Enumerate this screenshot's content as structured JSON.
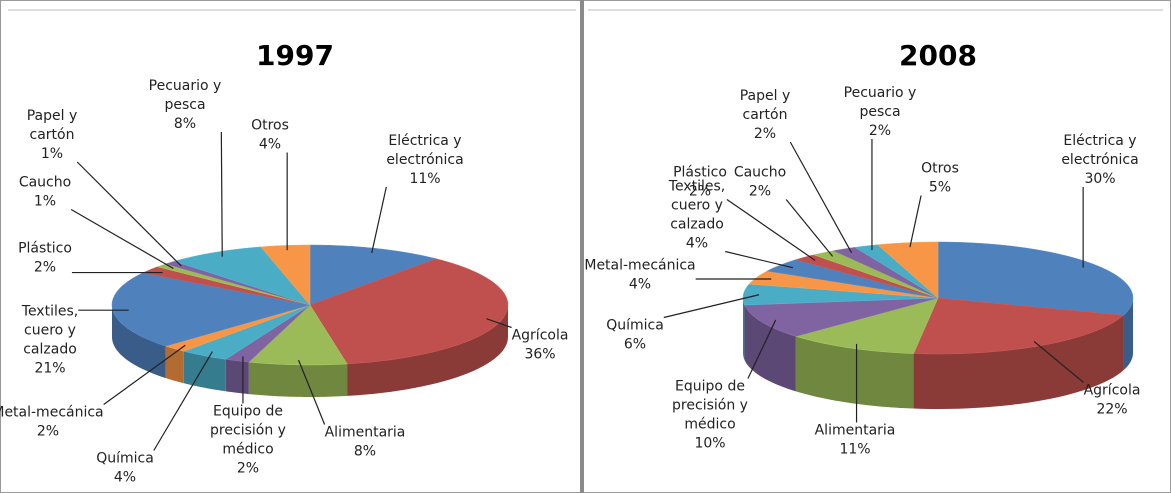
{
  "chart_data": [
    {
      "type": "pie",
      "title": "1997",
      "categories": [
        "Eléctrica y electrónica",
        "Agrícola",
        "Alimentaria",
        "Equipo de precisión y médico",
        "Química",
        "Metal-mecánica",
        "Textiles, cuero y calzado",
        "Plástico",
        "Caucho",
        "Papel y cartón",
        "Pecuario y pesca",
        "Otros"
      ],
      "values": [
        11,
        36,
        8,
        2,
        4,
        2,
        21,
        2,
        1,
        1,
        8,
        4
      ],
      "value_labels": [
        "11%",
        "36%",
        "8%",
        "2%",
        "4%",
        "2%",
        "21%",
        "2%",
        "1%",
        "1%",
        "8%",
        "4%"
      ],
      "colors": [
        "#4f81bd",
        "#c0504d",
        "#9bbb59",
        "#8064a2",
        "#4bacc6",
        "#f79646",
        "#4f81bd",
        "#c0504d",
        "#9bbb59",
        "#8064a2",
        "#4bacc6",
        "#f79646"
      ]
    },
    {
      "type": "pie",
      "title": "2008",
      "categories": [
        "Eléctrica y electrónica",
        "Agrícola",
        "Alimentaria",
        "Equipo de precisión y médico",
        "Química",
        "Metal-mecánica",
        "Textiles, cuero y calzado",
        "Plástico",
        "Caucho",
        "Papel y cartón",
        "Pecuario y pesca",
        "Otros"
      ],
      "values": [
        30,
        22,
        11,
        10,
        6,
        4,
        4,
        2,
        2,
        2,
        2,
        5
      ],
      "value_labels": [
        "30%",
        "22%",
        "11%",
        "10%",
        "6%",
        "4%",
        "4%",
        "2%",
        "2%",
        "2%",
        "2%",
        "5%"
      ],
      "colors": [
        "#4f81bd",
        "#c0504d",
        "#9bbb59",
        "#8064a2",
        "#4bacc6",
        "#f79646",
        "#4f81bd",
        "#c0504d",
        "#9bbb59",
        "#8064a2",
        "#4bacc6",
        "#f79646"
      ]
    }
  ]
}
